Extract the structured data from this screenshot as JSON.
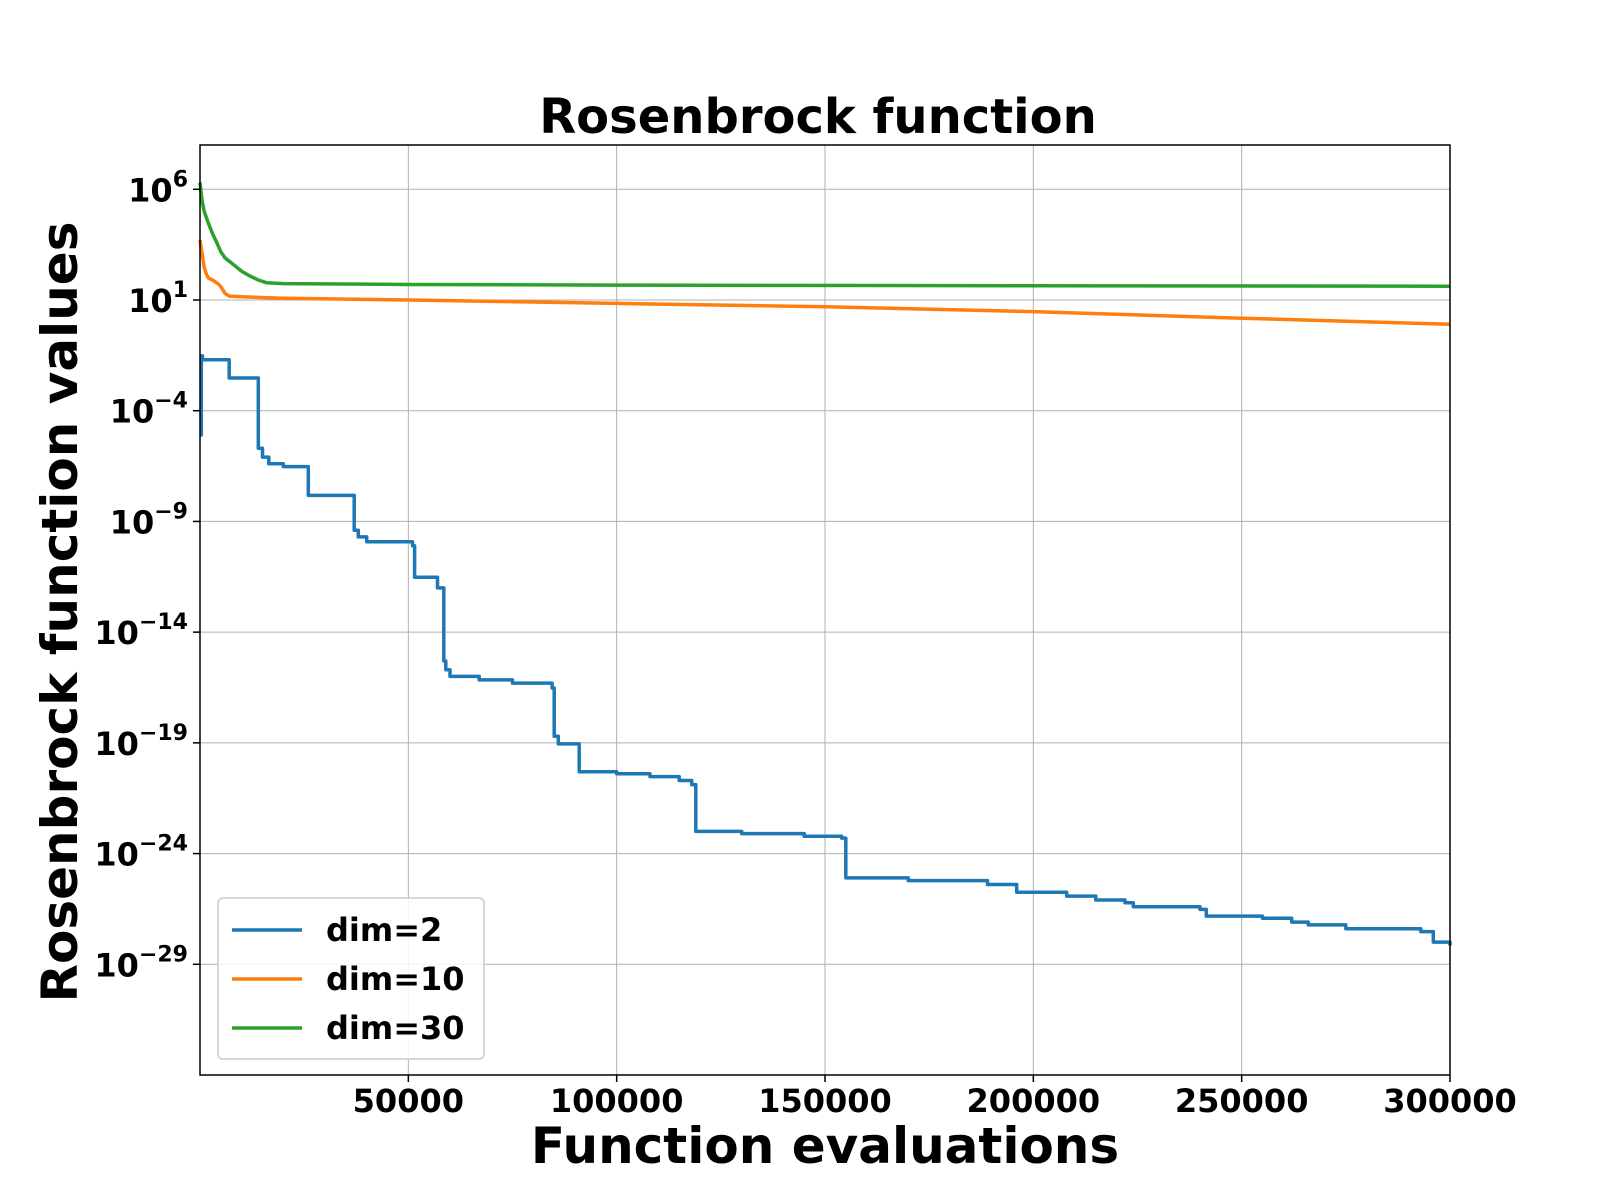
{
  "chart_data": {
    "type": "line",
    "title": "Rosenbrock function",
    "xlabel": "Function evaluations",
    "ylabel": "Rosenbrock function values",
    "xlim": [
      0,
      300000
    ],
    "ylim": [
      1e-34,
      100000000.0
    ],
    "yscale": "log",
    "grid": true,
    "legend_position": "bottom-left",
    "x_ticks": [
      50000,
      100000,
      150000,
      200000,
      250000,
      300000
    ],
    "x_tick_labels": [
      "50000",
      "100000",
      "150000",
      "200000",
      "250000",
      "300000"
    ],
    "y_ticks": [
      {
        "value": 1000000.0,
        "base": "10",
        "exp": "6"
      },
      {
        "value": 10.0,
        "base": "10",
        "exp": "1"
      },
      {
        "value": 0.0001,
        "base": "10",
        "exp": "−4"
      },
      {
        "value": 1e-09,
        "base": "10",
        "exp": "−9"
      },
      {
        "value": 1e-14,
        "base": "10",
        "exp": "−14"
      },
      {
        "value": 1e-19,
        "base": "10",
        "exp": "−19"
      },
      {
        "value": 1e-24,
        "base": "10",
        "exp": "−24"
      },
      {
        "value": 1e-29,
        "base": "10",
        "exp": "−29"
      }
    ],
    "series": [
      {
        "name": "dim=2",
        "color": "#1f77b4",
        "step": true,
        "x": [
          0,
          300,
          600,
          7000,
          14000,
          15000,
          16500,
          20000,
          26000,
          37000,
          38000,
          40000,
          51000,
          51500,
          57000,
          58500,
          59000,
          60000,
          67000,
          75000,
          84500,
          85000,
          86000,
          91000,
          100000,
          108000,
          115000,
          118000,
          119000,
          130000,
          145000,
          154000,
          155000,
          170000,
          189000,
          196000,
          208000,
          215000,
          222000,
          224000,
          240000,
          241500,
          255000,
          262000,
          266000,
          275000,
          293000,
          296000,
          300000
        ],
        "y": [
          8e-06,
          0.03,
          0.02,
          0.003,
          2e-06,
          8e-07,
          4e-07,
          3e-07,
          1.5e-08,
          4e-10,
          2e-10,
          1.2e-10,
          8e-11,
          3e-12,
          1e-12,
          5e-16,
          2e-16,
          1e-16,
          7e-17,
          5e-17,
          3e-17,
          2e-19,
          9e-20,
          5e-21,
          4e-21,
          3e-21,
          2e-21,
          1.3e-21,
          1e-23,
          8e-24,
          6e-24,
          5e-24,
          8e-26,
          6e-26,
          4e-26,
          1.8e-26,
          1.2e-26,
          8e-27,
          6e-27,
          4e-27,
          3e-27,
          1.5e-27,
          1.2e-27,
          8e-28,
          6e-28,
          4e-28,
          3e-28,
          1e-28,
          7e-29
        ]
      },
      {
        "name": "dim=10",
        "color": "#ff7f0e",
        "step": false,
        "x": [
          0,
          1000,
          1500,
          2000,
          3000,
          4000,
          4500,
          5000,
          6000,
          7000,
          10000,
          20000,
          50000,
          100000,
          150000,
          200000,
          250000,
          300000
        ],
        "y": [
          5000,
          300,
          150,
          100,
          80,
          60,
          50,
          40,
          20,
          15,
          14,
          12,
          10,
          7,
          5,
          3,
          1.5,
          0.8
        ]
      },
      {
        "name": "dim=30",
        "color": "#2ca02c",
        "step": false,
        "x": [
          0,
          500,
          1000,
          2000,
          3000,
          4000,
          5000,
          6000,
          8000,
          10000,
          12000,
          14000,
          16000,
          20000,
          50000,
          100000,
          200000,
          300000
        ],
        "y": [
          2000000,
          300000,
          100000,
          30000,
          10000,
          4000,
          1500,
          800,
          400,
          200,
          120,
          80,
          60,
          55,
          50,
          47,
          44,
          42
        ]
      }
    ]
  }
}
